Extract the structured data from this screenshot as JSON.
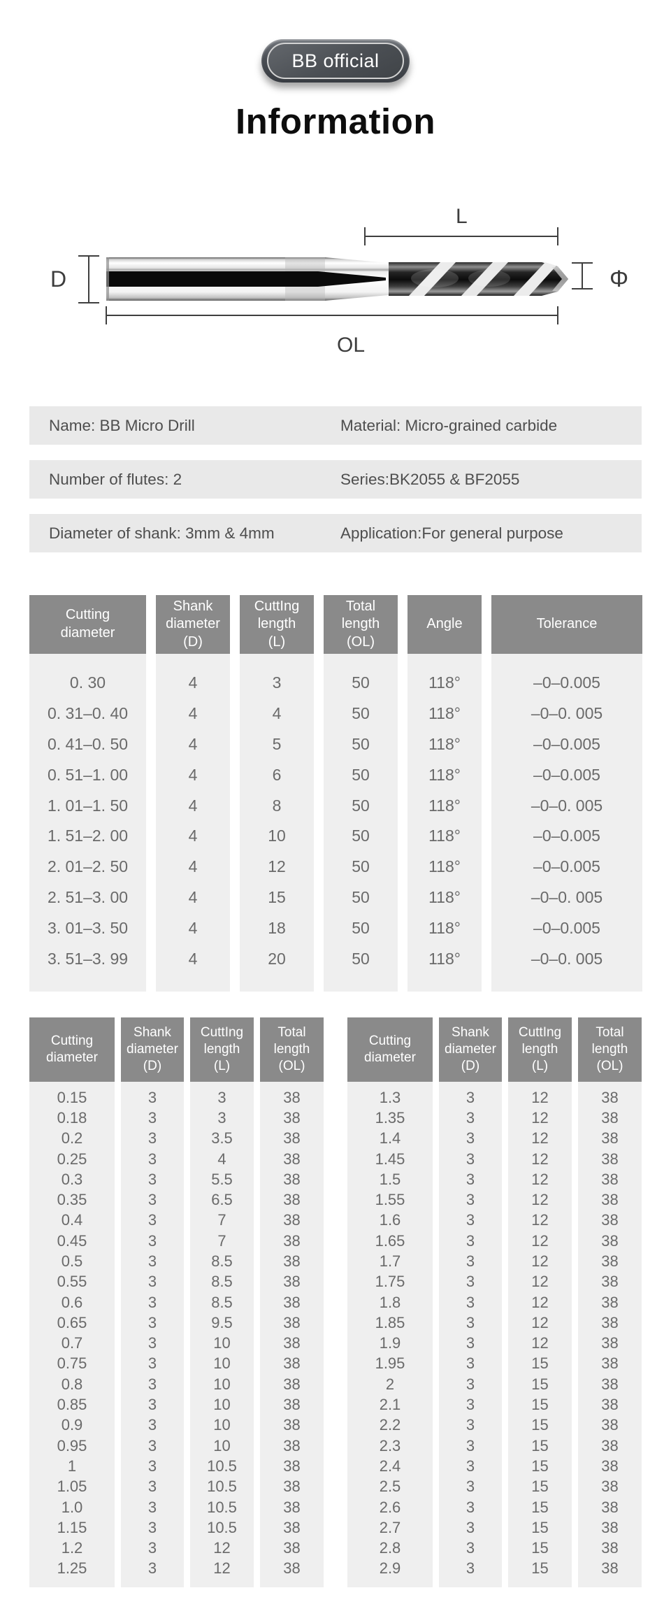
{
  "badge": {
    "label": "BB official"
  },
  "title": "Information",
  "diagram": {
    "labels": {
      "shank_diameter": "D",
      "flute_length": "L",
      "tip_diameter": "Φ",
      "overall_length": "OL"
    }
  },
  "info_rows": [
    {
      "left": "Name: BB Micro Drill",
      "right": "Material: Micro-grained carbide"
    },
    {
      "left": "Number of flutes: 2",
      "right": "Series:BK2055 & BF2055"
    },
    {
      "left": "Diameter of shank: 3mm & 4mm",
      "right": "Application:For general purpose"
    }
  ],
  "colors": {
    "header_bg": "#8a8a8a",
    "cell_bg": "#efefef",
    "cell_text": "#6a6a6a",
    "info_bg": "#e9e9e9",
    "info_text": "#4e4e4e"
  },
  "main_table": {
    "headers": [
      [
        "Cutting",
        "diameter"
      ],
      [
        "Shank",
        "diameter",
        "(D)"
      ],
      [
        "CuttIng",
        "length",
        "(L)"
      ],
      [
        "Total",
        "length",
        "(OL)"
      ],
      [
        "Angle"
      ],
      [
        "Tolerance"
      ]
    ],
    "rows": [
      [
        "0. 30",
        "4",
        "3",
        "50",
        "118°",
        "–0–0.005"
      ],
      [
        "0. 31–0. 40",
        "4",
        "4",
        "50",
        "118°",
        "–0–0. 005"
      ],
      [
        "0. 41–0. 50",
        "4",
        "5",
        "50",
        "118°",
        "–0–0.005"
      ],
      [
        "0. 51–1. 00",
        "4",
        "6",
        "50",
        "118°",
        "–0–0.005"
      ],
      [
        "1. 01–1. 50",
        "4",
        "8",
        "50",
        "118°",
        "–0–0. 005"
      ],
      [
        "1. 51–2. 00",
        "4",
        "10",
        "50",
        "118°",
        "–0–0.005"
      ],
      [
        "2. 01–2. 50",
        "4",
        "12",
        "50",
        "118°",
        "–0–0.005"
      ],
      [
        "2. 51–3. 00",
        "4",
        "15",
        "50",
        "118°",
        "–0–0. 005"
      ],
      [
        "3. 01–3. 50",
        "4",
        "18",
        "50",
        "118°",
        "–0–0.005"
      ],
      [
        "3. 51–3. 99",
        "4",
        "20",
        "50",
        "118°",
        "–0–0. 005"
      ]
    ]
  },
  "left_table": {
    "headers": [
      [
        "Cutting",
        "diameter"
      ],
      [
        "Shank",
        "diameter",
        "(D)"
      ],
      [
        "CuttIng",
        "length",
        "(L)"
      ],
      [
        "Total",
        "length",
        "(OL)"
      ]
    ],
    "rows": [
      [
        "0.15",
        "3",
        "3",
        "38"
      ],
      [
        "0.18",
        "3",
        "3",
        "38"
      ],
      [
        "0.2",
        "3",
        "3.5",
        "38"
      ],
      [
        "0.25",
        "3",
        "4",
        "38"
      ],
      [
        "0.3",
        "3",
        "5.5",
        "38"
      ],
      [
        "0.35",
        "3",
        "6.5",
        "38"
      ],
      [
        "0.4",
        "3",
        "7",
        "38"
      ],
      [
        "0.45",
        "3",
        "7",
        "38"
      ],
      [
        "0.5",
        "3",
        "8.5",
        "38"
      ],
      [
        "0.55",
        "3",
        "8.5",
        "38"
      ],
      [
        "0.6",
        "3",
        "8.5",
        "38"
      ],
      [
        "0.65",
        "3",
        "9.5",
        "38"
      ],
      [
        "0.7",
        "3",
        "10",
        "38"
      ],
      [
        "0.75",
        "3",
        "10",
        "38"
      ],
      [
        "0.8",
        "3",
        "10",
        "38"
      ],
      [
        "0.85",
        "3",
        "10",
        "38"
      ],
      [
        "0.9",
        "3",
        "10",
        "38"
      ],
      [
        "0.95",
        "3",
        "10",
        "38"
      ],
      [
        "1",
        "3",
        "10.5",
        "38"
      ],
      [
        "1.05",
        "3",
        "10.5",
        "38"
      ],
      [
        "1.0",
        "3",
        "10.5",
        "38"
      ],
      [
        "1.15",
        "3",
        "10.5",
        "38"
      ],
      [
        "1.2",
        "3",
        "12",
        "38"
      ],
      [
        "1.25",
        "3",
        "12",
        "38"
      ]
    ]
  },
  "right_table": {
    "headers": [
      [
        "Cutting",
        "diameter"
      ],
      [
        "Shank",
        "diameter",
        "(D)"
      ],
      [
        "CuttIng",
        "length",
        "(L)"
      ],
      [
        "Total",
        "length",
        "(OL)"
      ]
    ],
    "rows": [
      [
        "1.3",
        "3",
        "12",
        "38"
      ],
      [
        "1.35",
        "3",
        "12",
        "38"
      ],
      [
        "1.4",
        "3",
        "12",
        "38"
      ],
      [
        "1.45",
        "3",
        "12",
        "38"
      ],
      [
        "1.5",
        "3",
        "12",
        "38"
      ],
      [
        "1.55",
        "3",
        "12",
        "38"
      ],
      [
        "1.6",
        "3",
        "12",
        "38"
      ],
      [
        "1.65",
        "3",
        "12",
        "38"
      ],
      [
        "1.7",
        "3",
        "12",
        "38"
      ],
      [
        "1.75",
        "3",
        "12",
        "38"
      ],
      [
        "1.8",
        "3",
        "12",
        "38"
      ],
      [
        "1.85",
        "3",
        "12",
        "38"
      ],
      [
        "1.9",
        "3",
        "12",
        "38"
      ],
      [
        "1.95",
        "3",
        "15",
        "38"
      ],
      [
        "2",
        "3",
        "15",
        "38"
      ],
      [
        "2.1",
        "3",
        "15",
        "38"
      ],
      [
        "2.2",
        "3",
        "15",
        "38"
      ],
      [
        "2.3",
        "3",
        "15",
        "38"
      ],
      [
        "2.4",
        "3",
        "15",
        "38"
      ],
      [
        "2.5",
        "3",
        "15",
        "38"
      ],
      [
        "2.6",
        "3",
        "15",
        "38"
      ],
      [
        "2.7",
        "3",
        "15",
        "38"
      ],
      [
        "2.8",
        "3",
        "15",
        "38"
      ],
      [
        "2.9",
        "3",
        "15",
        "38"
      ]
    ]
  }
}
